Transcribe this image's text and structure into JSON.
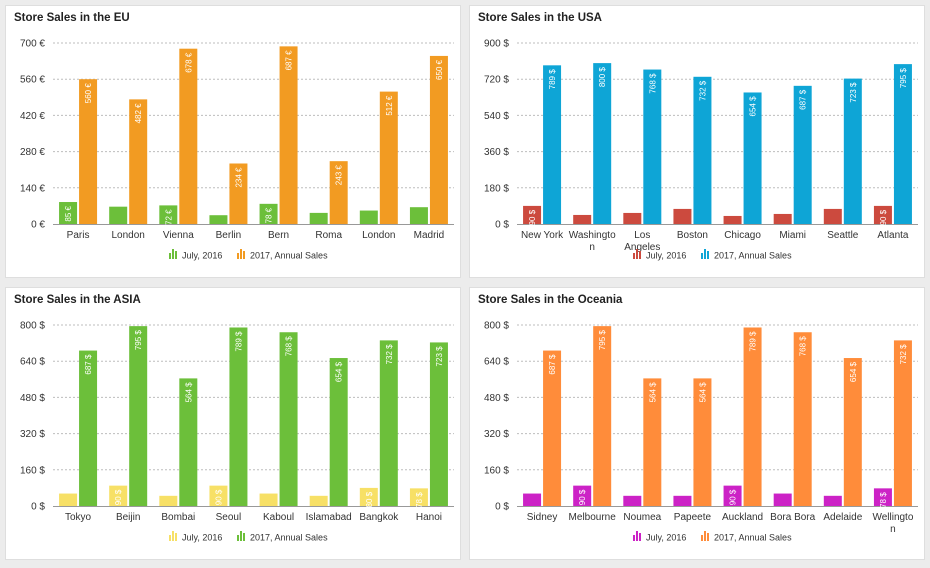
{
  "chart_data": [
    {
      "type": "bar",
      "title": "Store Sales in the EU",
      "categories": [
        "Paris",
        "London",
        "Vienna",
        "Berlin",
        "Bern",
        "Roma",
        "London",
        "Madrid"
      ],
      "series": [
        {
          "name": "July, 2016",
          "color": "#6cbf3a",
          "values": [
            85,
            67,
            72,
            34,
            78,
            43,
            52,
            65
          ],
          "labels": [
            "85 €",
            "",
            "72 €",
            "",
            "78 €",
            "",
            "",
            ""
          ]
        },
        {
          "name": "2017, Annual Sales",
          "color": "#f29b22",
          "values": [
            560,
            482,
            678,
            234,
            687,
            243,
            512,
            650
          ],
          "labels": [
            "560 €",
            "482 €",
            "678 €",
            "234 €",
            "687 €",
            "243 €",
            "512 €",
            "650 €"
          ]
        }
      ],
      "yticks": [
        "0 €",
        "140 €",
        "280 €",
        "420 €",
        "560 €",
        "700 €"
      ],
      "ylim": [
        0,
        700
      ]
    },
    {
      "type": "bar",
      "title": "Store Sales in the USA",
      "categories": [
        "New York",
        "Washington",
        "Los Angeles",
        "Boston",
        "Chicago",
        "Miami",
        "Seattle",
        "Atlanta"
      ],
      "series": [
        {
          "name": "July, 2016",
          "color": "#cc4a3e",
          "values": [
            90,
            45,
            55,
            75,
            40,
            50,
            75,
            90
          ],
          "labels": [
            "90 $",
            "",
            "",
            "",
            "",
            "",
            "",
            "90 $"
          ]
        },
        {
          "name": "2017, Annual Sales",
          "color": "#0ea5d6",
          "values": [
            789,
            800,
            768,
            732,
            654,
            687,
            723,
            795
          ],
          "labels": [
            "789 $",
            "800 $",
            "768 $",
            "732 $",
            "654 $",
            "687 $",
            "723 $",
            "795 $"
          ]
        }
      ],
      "yticks": [
        "0 $",
        "180 $",
        "360 $",
        "540 $",
        "720 $",
        "900 $"
      ],
      "ylim": [
        0,
        900
      ]
    },
    {
      "type": "bar",
      "title": "Store Sales in the ASIA",
      "categories": [
        "Tokyo",
        "Beijin",
        "Bombai",
        "Seoul",
        "Kaboul",
        "Islamabad",
        "Bangkok",
        "Hanoi"
      ],
      "series": [
        {
          "name": "July, 2016",
          "color": "#f7e066",
          "values": [
            55,
            90,
            45,
            90,
            55,
            45,
            80,
            78
          ],
          "labels": [
            "",
            "90 $",
            "",
            "90 $",
            "",
            "",
            "80 $",
            "78 $"
          ]
        },
        {
          "name": "2017, Annual Sales",
          "color": "#6cbf3a",
          "values": [
            687,
            795,
            564,
            789,
            768,
            654,
            732,
            723
          ],
          "labels": [
            "687 $",
            "795 $",
            "564 $",
            "789 $",
            "768 $",
            "654 $",
            "732 $",
            "723 $"
          ]
        }
      ],
      "yticks": [
        "0 $",
        "160 $",
        "320 $",
        "480 $",
        "640 $",
        "800 $"
      ],
      "ylim": [
        0,
        800
      ]
    },
    {
      "type": "bar",
      "title": "Store Sales in the Oceania",
      "categories": [
        "Sidney",
        "Melbourne",
        "Noumea",
        "Papeete",
        "Auckland",
        "Bora Bora",
        "Adelaide",
        "Wellington"
      ],
      "series": [
        {
          "name": "July, 2016",
          "color": "#cc22c6",
          "values": [
            55,
            90,
            45,
            45,
            90,
            55,
            45,
            78
          ],
          "labels": [
            "",
            "90 $",
            "",
            "",
            "90 $",
            "",
            "",
            "78 $"
          ]
        },
        {
          "name": "2017, Annual Sales",
          "color": "#ff8c3a",
          "values": [
            687,
            795,
            564,
            564,
            789,
            768,
            654,
            732
          ],
          "labels": [
            "687 $",
            "795 $",
            "564 $",
            "564 $",
            "789 $",
            "768 $",
            "654 $",
            "732 $"
          ]
        }
      ],
      "yticks": [
        "0 $",
        "160 $",
        "320 $",
        "480 $",
        "640 $",
        "800 $"
      ],
      "ylim": [
        0,
        800
      ]
    }
  ]
}
